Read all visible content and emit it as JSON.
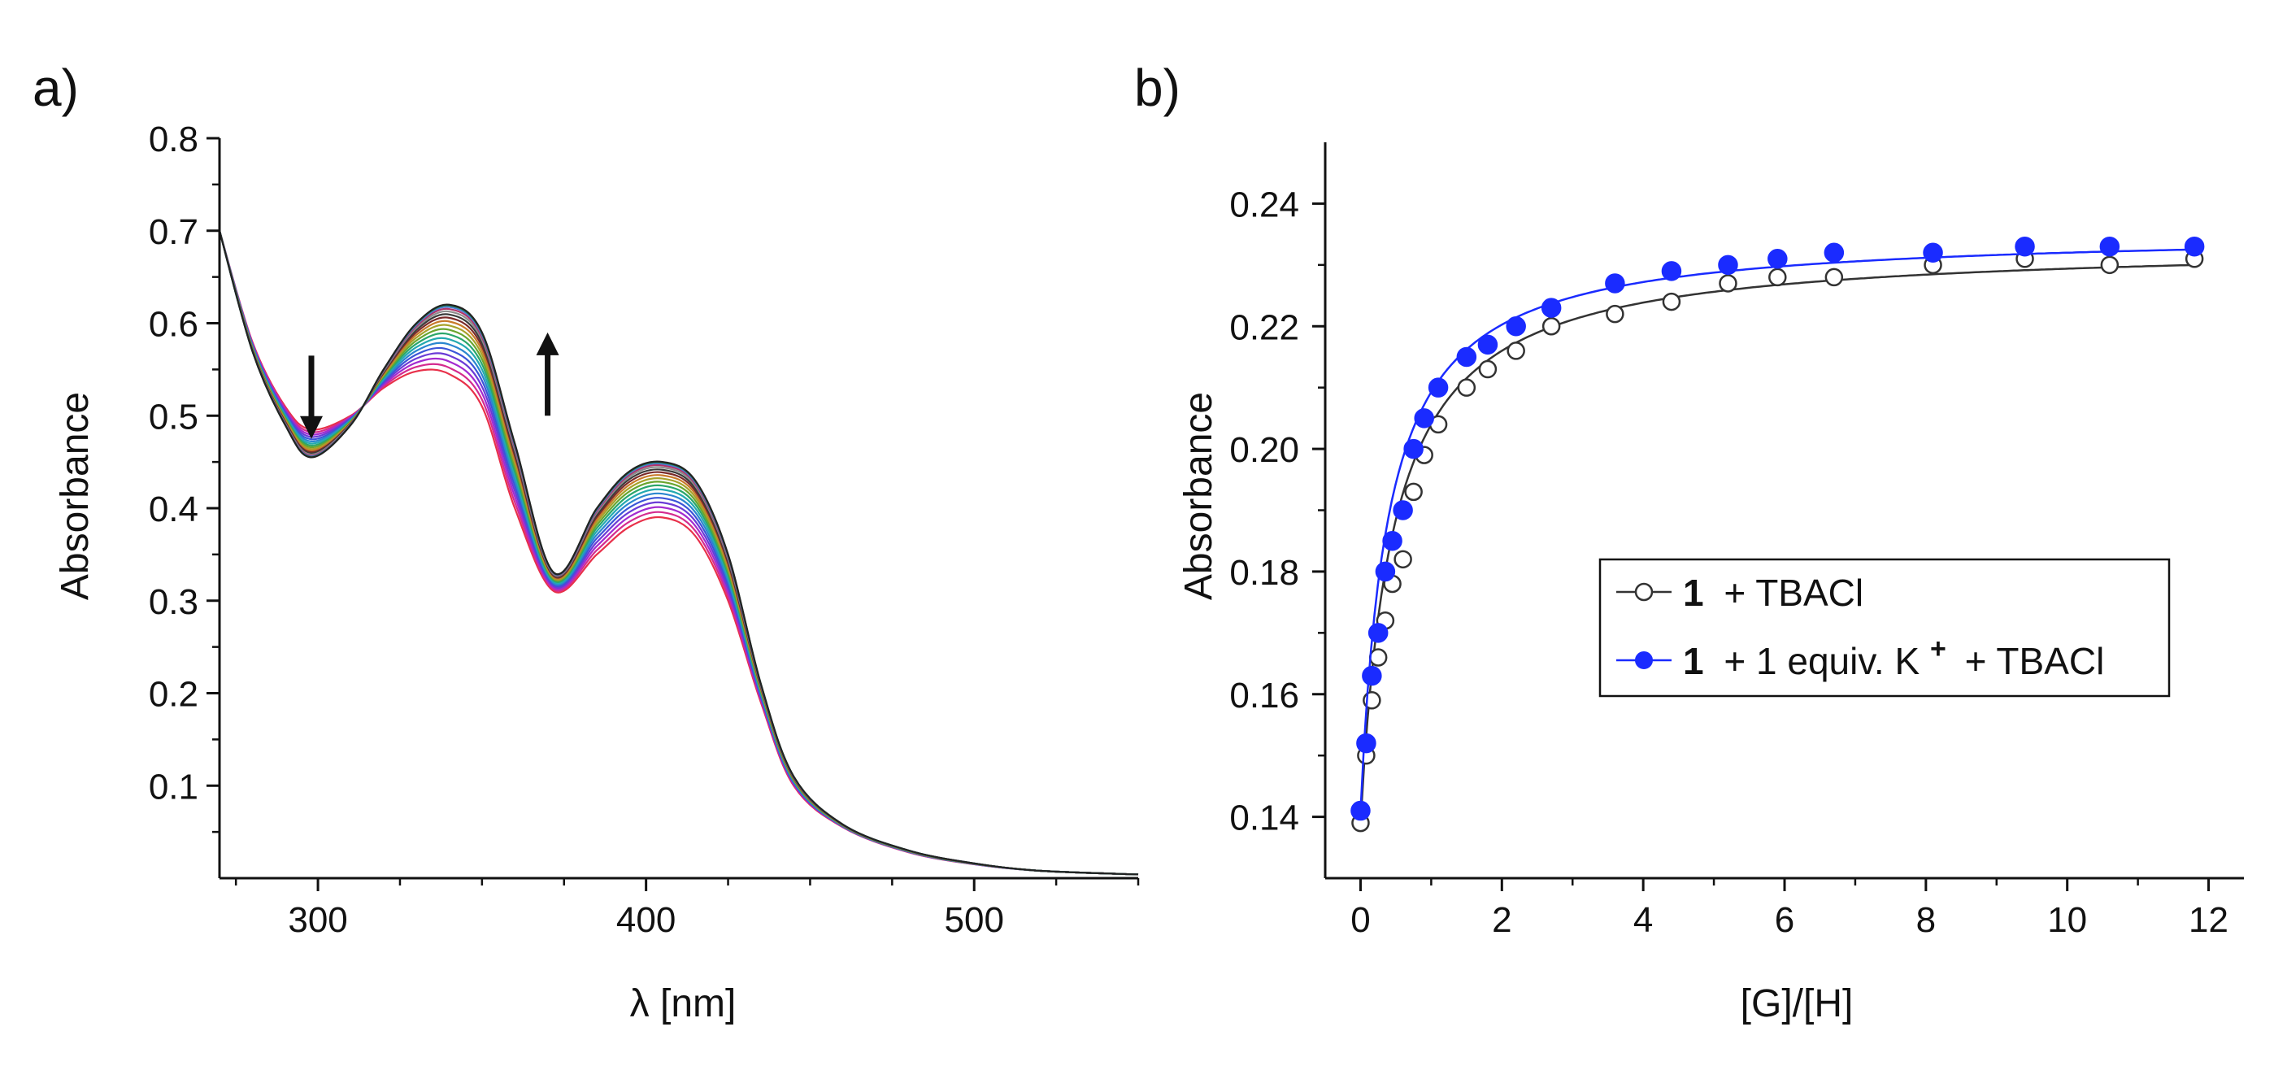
{
  "panel_a": {
    "label": "a)",
    "arrow_down_hint": "decreasing",
    "arrow_up_hint": "increasing"
  },
  "panel_b": {
    "label": "b)",
    "legend": {
      "entry1": {
        "bold": "1",
        "rest": "+ TBACl"
      },
      "entry2": {
        "bold": "1",
        "rest_a": "+ 1 equiv. K",
        "sup": "+",
        "rest_b": "+ TBACl"
      }
    }
  },
  "chart_data": [
    {
      "type": "line",
      "title": "",
      "xlabel": "λ [nm]",
      "ylabel": "Absorbance",
      "xlim": [
        270,
        550
      ],
      "ylim": [
        0.0,
        0.8
      ],
      "xticks": [
        300,
        400,
        500
      ],
      "yticks": [
        0.1,
        0.2,
        0.3,
        0.4,
        0.5,
        0.6,
        0.7,
        0.8
      ],
      "ytick_labels": [
        "0.1",
        "0.2",
        "0.3",
        "0.4",
        "0.5",
        "0.6",
        "0.7",
        "0.8"
      ],
      "spectra_count": 18,
      "series_colors": [
        "#e8304a",
        "#d42b8f",
        "#a32bd0",
        "#6a3bd6",
        "#3b55d8",
        "#2a86cf",
        "#23a9b0",
        "#2aa66a",
        "#6aa52e",
        "#a8a12a",
        "#c97a2a",
        "#7a2a2a",
        "#3a3a3a",
        "#8c8c8c",
        "#b0356a",
        "#4a7ad6",
        "#1f8a4a",
        "#222222"
      ],
      "x": [
        270,
        280,
        290,
        298,
        310,
        320,
        330,
        340,
        350,
        360,
        372,
        385,
        395,
        405,
        415,
        425,
        435,
        445,
        460,
        480,
        500,
        520,
        550
      ],
      "y_first": [
        0.7,
        0.58,
        0.51,
        0.485,
        0.5,
        0.53,
        0.548,
        0.545,
        0.51,
        0.4,
        0.31,
        0.35,
        0.38,
        0.39,
        0.37,
        0.3,
        0.19,
        0.1,
        0.055,
        0.028,
        0.015,
        0.008,
        0.004
      ],
      "y_last": [
        0.7,
        0.57,
        0.49,
        0.455,
        0.49,
        0.55,
        0.6,
        0.62,
        0.59,
        0.47,
        0.33,
        0.4,
        0.44,
        0.45,
        0.43,
        0.35,
        0.21,
        0.11,
        0.058,
        0.03,
        0.016,
        0.008,
        0.004
      ],
      "arrows": [
        {
          "x": 298,
          "direction": "down",
          "from": 0.565,
          "to": 0.475
        },
        {
          "x": 370,
          "direction": "up",
          "from": 0.5,
          "to": 0.59
        }
      ]
    },
    {
      "type": "scatter",
      "title": "",
      "xlabel": "[G]/[H]",
      "ylabel": "Absorbance",
      "xlim": [
        -0.5,
        12.5
      ],
      "ylim": [
        0.13,
        0.25
      ],
      "xticks": [
        0,
        2,
        4,
        6,
        8,
        10,
        12
      ],
      "yticks": [
        0.14,
        0.16,
        0.18,
        0.2,
        0.22,
        0.24
      ],
      "ytick_labels": [
        "0.14",
        "0.16",
        "0.18",
        "0.20",
        "0.22",
        "0.24"
      ],
      "legend_position": "center-right",
      "series": [
        {
          "name": "1 + TBACl",
          "color": "#333333",
          "marker": "open-circle",
          "x": [
            0,
            0.08,
            0.16,
            0.25,
            0.35,
            0.45,
            0.6,
            0.75,
            0.9,
            1.1,
            1.5,
            1.8,
            2.2,
            2.7,
            3.6,
            4.4,
            5.2,
            5.9,
            6.7,
            8.1,
            9.4,
            10.6,
            11.8
          ],
          "values": [
            0.139,
            0.15,
            0.159,
            0.166,
            0.172,
            0.178,
            0.182,
            0.193,
            0.199,
            0.204,
            0.21,
            0.213,
            0.216,
            0.22,
            0.222,
            0.224,
            0.227,
            0.228,
            0.228,
            0.23,
            0.231,
            0.23,
            0.231
          ],
          "fit": {
            "A0": 0.139,
            "Amax": 0.2335,
            "k": 2.2
          }
        },
        {
          "name": "1 + 1 equiv. K+ + TBACl",
          "color": "#1a2bff",
          "marker": "filled-circle",
          "x": [
            0,
            0.08,
            0.16,
            0.25,
            0.35,
            0.45,
            0.6,
            0.75,
            0.9,
            1.1,
            1.5,
            1.8,
            2.2,
            2.7,
            3.6,
            4.4,
            5.2,
            5.9,
            6.7,
            8.1,
            9.4,
            10.6,
            11.8
          ],
          "values": [
            0.141,
            0.152,
            0.163,
            0.17,
            0.18,
            0.185,
            0.19,
            0.2,
            0.205,
            0.21,
            0.215,
            0.217,
            0.22,
            0.223,
            0.227,
            0.229,
            0.23,
            0.231,
            0.232,
            0.232,
            0.233,
            0.233,
            0.233
          ],
          "fit": {
            "A0": 0.141,
            "Amax": 0.2355,
            "k": 2.6
          }
        }
      ]
    }
  ]
}
